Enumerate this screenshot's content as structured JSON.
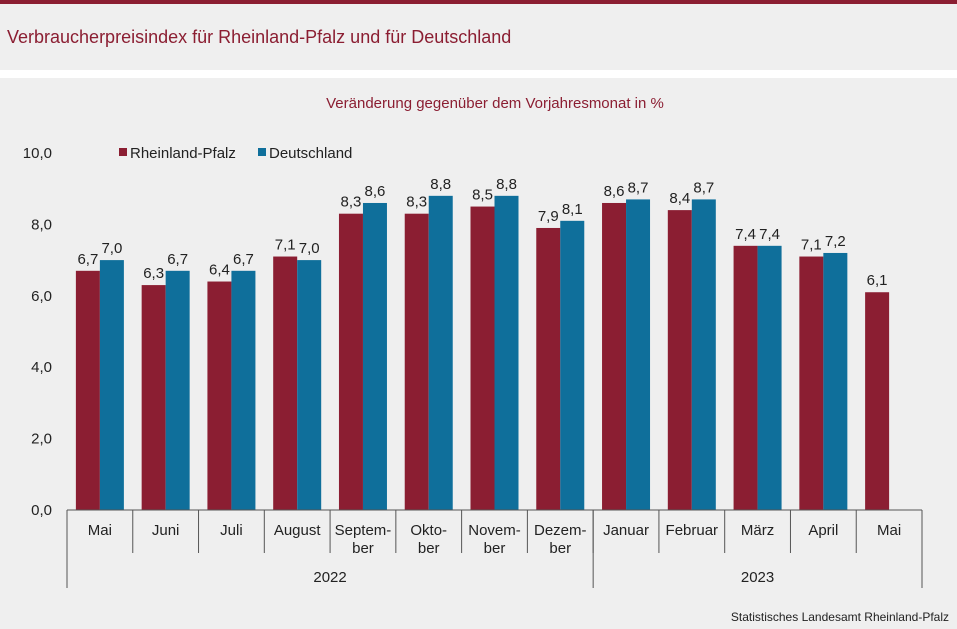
{
  "header": {
    "title": "Verbraucherpreisindex für Rheinland-Pfalz und für Deutschland"
  },
  "footer": {
    "source": "Statistisches Landesamt Rheinland-Pfalz"
  },
  "chart_data": {
    "type": "bar",
    "subtitle": "Veränderung gegenüber dem Vorjahresmonat in %",
    "categories": [
      [
        "Mai"
      ],
      [
        "Juni"
      ],
      [
        "Juli"
      ],
      [
        "August"
      ],
      [
        "Septem-",
        "ber"
      ],
      [
        "Okto-",
        "ber"
      ],
      [
        "Novem-",
        "ber"
      ],
      [
        "Dezem-",
        "ber"
      ],
      [
        "Januar"
      ],
      [
        "Februar"
      ],
      [
        "März"
      ],
      [
        "April"
      ],
      [
        "Mai"
      ]
    ],
    "groups": [
      {
        "label": "2022",
        "from": 0,
        "to": 7
      },
      {
        "label": "2023",
        "from": 8,
        "to": 12
      }
    ],
    "series": [
      {
        "name": "Rheinland-Pfalz",
        "color": "#8b1e32",
        "values": [
          6.7,
          6.3,
          6.4,
          7.1,
          8.3,
          8.3,
          8.5,
          7.9,
          8.6,
          8.4,
          7.4,
          7.1,
          6.1
        ],
        "labels": [
          "6,7",
          "6,3",
          "6,4",
          "7,1",
          "8,3",
          "8,3",
          "8,5",
          "7,9",
          "8,6",
          "8,4",
          "7,4",
          "7,1",
          "6,1"
        ]
      },
      {
        "name": "Deutschland",
        "color": "#0f6f9b",
        "values": [
          7.0,
          6.7,
          6.7,
          7.0,
          8.6,
          8.8,
          8.8,
          8.1,
          8.7,
          8.7,
          7.4,
          7.2,
          null
        ],
        "labels": [
          "7,0",
          "6,7",
          "6,7",
          "7,0",
          "8,6",
          "8,8",
          "8,8",
          "8,1",
          "8,7",
          "8,7",
          "7,4",
          "7,2",
          ""
        ]
      }
    ],
    "ylim": [
      0,
      10
    ],
    "yticks": [
      0,
      2,
      4,
      6,
      8,
      10
    ],
    "ytick_labels": [
      "0,0",
      "2,0",
      "4,0",
      "6,0",
      "8,0",
      "10,0"
    ],
    "legend_position": "top-left",
    "grid": false
  }
}
